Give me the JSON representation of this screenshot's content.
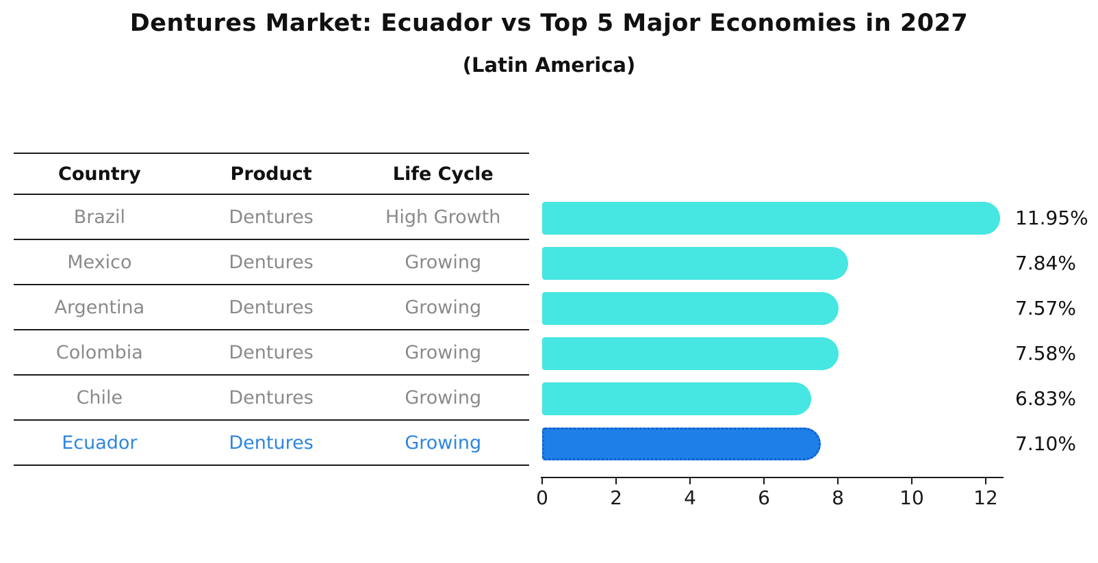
{
  "title": "Dentures Market: Ecuador vs Top 5 Major Economies in 2027",
  "subtitle": "(Latin America)",
  "table": {
    "headers": [
      "Country",
      "Product",
      "Life Cycle"
    ],
    "rows": [
      {
        "country": "Brazil",
        "product": "Dentures",
        "life_cycle": "High Growth",
        "highlight": false
      },
      {
        "country": "Mexico",
        "product": "Dentures",
        "life_cycle": "Growing",
        "highlight": false
      },
      {
        "country": "Argentina",
        "product": "Dentures",
        "life_cycle": "Growing",
        "highlight": false
      },
      {
        "country": "Colombia",
        "product": "Dentures",
        "life_cycle": "Growing",
        "highlight": false
      },
      {
        "country": "Chile",
        "product": "Dentures",
        "life_cycle": "Growing",
        "highlight": false
      },
      {
        "country": "Ecuador",
        "product": "Dentures",
        "life_cycle": "Growing",
        "highlight": true
      }
    ]
  },
  "chart_data": {
    "type": "bar",
    "orientation": "horizontal",
    "title": "Dentures Market: Ecuador vs Top 5 Major Economies in 2027",
    "subtitle": "(Latin America)",
    "categories": [
      "Brazil",
      "Mexico",
      "Argentina",
      "Colombia",
      "Chile",
      "Ecuador"
    ],
    "values": [
      11.95,
      7.84,
      7.57,
      7.58,
      6.83,
      7.1
    ],
    "value_labels": [
      "11.95%",
      "7.84%",
      "7.57%",
      "7.58%",
      "6.83%",
      "7.10%"
    ],
    "highlight_index": 5,
    "x_ticks": [
      "0",
      "2",
      "4",
      "6",
      "8",
      "10",
      "12"
    ],
    "x_tick_values": [
      0,
      2,
      4,
      6,
      8,
      10,
      12
    ],
    "xlim": [
      0,
      12.5
    ],
    "grid": false,
    "legend": "none",
    "colors": {
      "bar_default": "#46E6E2",
      "bar_highlight": "#1F7FE8",
      "bar_highlight_border": "#1060CE",
      "highlight_text": "#2E86DE",
      "table_text": "#8a8a8a",
      "axis_text": "#1a1a1a"
    }
  }
}
